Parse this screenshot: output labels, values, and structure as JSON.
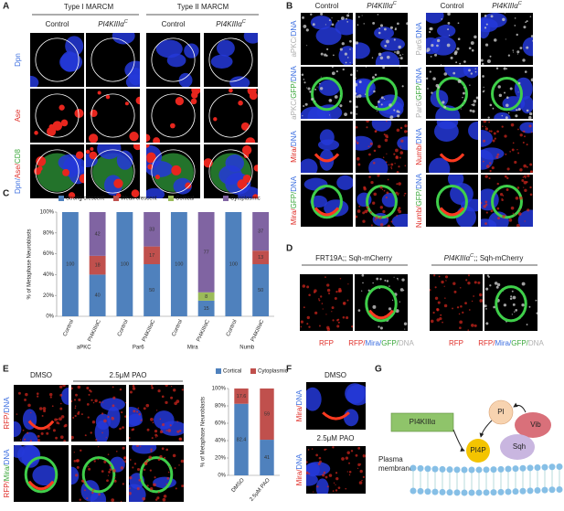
{
  "genotype": {
    "name": "PI4KIIIα",
    "allele": "C"
  },
  "control": "Control",
  "panel_a": {
    "letter": "A",
    "groups": [
      "Type I MARCM",
      "Type II MARCM"
    ],
    "rows": [
      [
        {
          "text": "Dpn",
          "color": "#3d6fe0"
        }
      ],
      [
        {
          "text": "Ase",
          "color": "#e0302a"
        }
      ],
      [
        {
          "text": "Dpn/",
          "color": "#3d6fe0"
        },
        {
          "text": "Ase/",
          "color": "#e0302a"
        },
        {
          "text": "CD8",
          "color": "#3ca83c"
        }
      ]
    ]
  },
  "panel_b": {
    "letter": "B",
    "rows_left": [
      [
        {
          "text": "aPKC/",
          "color": "#b0b0b0"
        },
        {
          "text": "DNA",
          "color": "#3d6fe0"
        }
      ],
      [
        {
          "text": "aPKC/",
          "color": "#b0b0b0"
        },
        {
          "text": "GFP/",
          "color": "#3ca83c"
        },
        {
          "text": "DNA",
          "color": "#3d6fe0"
        }
      ],
      [
        {
          "text": "Mira/",
          "color": "#e0302a"
        },
        {
          "text": "DNA",
          "color": "#3d6fe0"
        }
      ],
      [
        {
          "text": "Mira/",
          "color": "#e0302a"
        },
        {
          "text": "GFP/",
          "color": "#3ca83c"
        },
        {
          "text": "DNA",
          "color": "#3d6fe0"
        }
      ]
    ],
    "rows_right": [
      [
        {
          "text": "Par6/",
          "color": "#b0b0b0"
        },
        {
          "text": "DNA",
          "color": "#3d6fe0"
        }
      ],
      [
        {
          "text": "Par6/",
          "color": "#b0b0b0"
        },
        {
          "text": "GFP/",
          "color": "#3ca83c"
        },
        {
          "text": "DNA",
          "color": "#3d6fe0"
        }
      ],
      [
        {
          "text": "Numb/",
          "color": "#e0302a"
        },
        {
          "text": "DNA",
          "color": "#3d6fe0"
        }
      ],
      [
        {
          "text": "Numb/",
          "color": "#e0302a"
        },
        {
          "text": "GFP/",
          "color": "#3ca83c"
        },
        {
          "text": "DNA",
          "color": "#3d6fe0"
        }
      ]
    ]
  },
  "panel_c": {
    "letter": "C",
    "chart_data": {
      "type": "bar",
      "stacked": true,
      "ylabel": "% of Metaphase Neuroblasts",
      "categories": [
        "Control",
        "PI4KIIIαC",
        "Control",
        "PI4KIIIαC",
        "Control",
        "PI4KIIIαC",
        "Control",
        "PI4KIIIαC"
      ],
      "groups": [
        "aPKC",
        "Par6",
        "Mira",
        "Numb"
      ],
      "series": [
        {
          "name": "Strong crescent",
          "color": "#4f81bd",
          "values": [
            100,
            40,
            100,
            50,
            100,
            15,
            100,
            50
          ]
        },
        {
          "name": "Weak crescent",
          "color": "#c0504d",
          "values": [
            0,
            18,
            0,
            17,
            0,
            0,
            0,
            13
          ]
        },
        {
          "name": "Cortical",
          "color": "#9bbb59",
          "values": [
            0,
            0,
            0,
            0,
            0,
            8,
            0,
            0
          ]
        },
        {
          "name": "Cytoplasmic",
          "color": "#8064a2",
          "values": [
            0,
            42,
            0,
            33,
            0,
            77,
            0,
            37
          ]
        }
      ],
      "ylim": [
        0,
        100
      ],
      "yticks": [
        {
          "value": 0,
          "label": "0%"
        },
        {
          "value": 20,
          "label": "20%"
        },
        {
          "value": 40,
          "label": "40%"
        },
        {
          "value": 60,
          "label": "60%"
        },
        {
          "value": 80,
          "label": "80%"
        },
        {
          "value": 100,
          "label": "100%"
        }
      ]
    }
  },
  "panel_d": {
    "letter": "D",
    "header_control": "FRT19A;; Sqh-mCherry",
    "header_mutant_suffix": ";; Sqh-mCherry",
    "captions": [
      [
        {
          "text": "RFP",
          "color": "#e0302a"
        }
      ],
      [
        {
          "text": "RFP/",
          "color": "#e0302a"
        },
        {
          "text": "Mira/",
          "color": "#3d6fe0"
        },
        {
          "text": "GFP/",
          "color": "#3ca83c"
        },
        {
          "text": "DNA",
          "color": "#b0b0b0"
        }
      ]
    ]
  },
  "panel_e": {
    "letter": "E",
    "treatments": [
      "DMSO",
      "2.5μM PAO"
    ],
    "rows": [
      [
        {
          "text": "RFP/",
          "color": "#e0302a"
        },
        {
          "text": "DNA",
          "color": "#3d6fe0"
        }
      ],
      [
        {
          "text": "RFP/",
          "color": "#e0302a"
        },
        {
          "text": "Mira/",
          "color": "#3ca83c"
        },
        {
          "text": "DNA",
          "color": "#3d6fe0"
        }
      ]
    ],
    "chart_data": {
      "type": "bar",
      "stacked": true,
      "ylabel": "% of Metaphase Neuroblasts",
      "categories": [
        "DMSO",
        "2.5μM PAO"
      ],
      "series": [
        {
          "name": "Cortical",
          "color": "#4f81bd",
          "values": [
            82.4,
            41
          ]
        },
        {
          "name": "Cytoplasmic",
          "color": "#c0504d",
          "values": [
            17.6,
            59
          ]
        }
      ],
      "ylim": [
        0,
        100
      ],
      "yticks": [
        {
          "value": 0,
          "label": "0%"
        },
        {
          "value": 20,
          "label": "20%"
        },
        {
          "value": 40,
          "label": "40%"
        },
        {
          "value": 60,
          "label": "60%"
        },
        {
          "value": 80,
          "label": "80%"
        },
        {
          "value": 100,
          "label": "100%"
        }
      ]
    }
  },
  "panel_f": {
    "letter": "F",
    "treatments": [
      "DMSO",
      "2.5μM PAO"
    ],
    "row": [
      {
        "text": "Mira/",
        "color": "#e0302a"
      },
      {
        "text": "DNA",
        "color": "#3d6fe0"
      }
    ]
  },
  "panel_g": {
    "letter": "G",
    "nodes": {
      "enzyme": "PI4KIIIα",
      "pi": "PI",
      "vib": "Vib",
      "pi4p": "PI4P",
      "sqh": "Sqh"
    },
    "membrane": [
      "Plasma",
      "membrane"
    ]
  }
}
